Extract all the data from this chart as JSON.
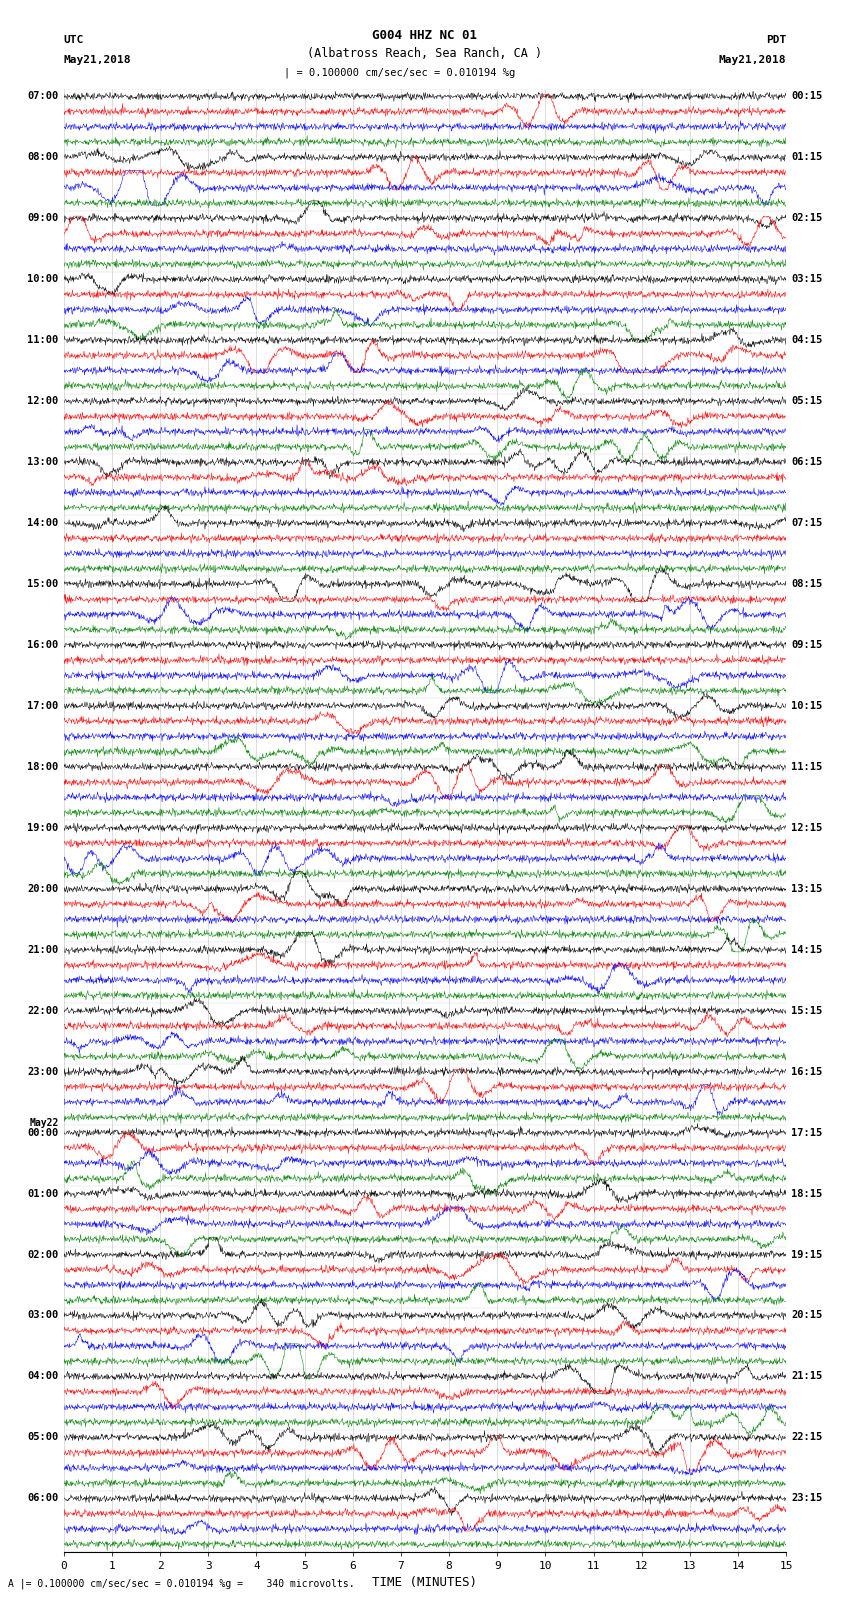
{
  "title_line1": "G004 HHZ NC 01",
  "title_line2": "(Albatross Reach, Sea Ranch, CA )",
  "scale_label": "= 0.100000 cm/sec/sec = 0.010194 %g",
  "footer_label": "A |= 0.100000 cm/sec/sec = 0.010194 %g =    340 microvolts.",
  "xlabel": "TIME (MINUTES)",
  "left_timezone": "UTC",
  "left_date": "May21,2018",
  "right_timezone": "PDT",
  "right_date": "May21,2018",
  "utc_times": [
    "07:00",
    "",
    "",
    "",
    "08:00",
    "",
    "",
    "",
    "09:00",
    "",
    "",
    "",
    "10:00",
    "",
    "",
    "",
    "11:00",
    "",
    "",
    "",
    "12:00",
    "",
    "",
    "",
    "13:00",
    "",
    "",
    "",
    "14:00",
    "",
    "",
    "",
    "15:00",
    "",
    "",
    "",
    "16:00",
    "",
    "",
    "",
    "17:00",
    "",
    "",
    "",
    "18:00",
    "",
    "",
    "",
    "19:00",
    "",
    "",
    "",
    "20:00",
    "",
    "",
    "",
    "21:00",
    "",
    "",
    "",
    "22:00",
    "",
    "",
    "",
    "23:00",
    "",
    "",
    "",
    "May22\n00:00",
    "",
    "",
    "",
    "01:00",
    "",
    "",
    "",
    "02:00",
    "",
    "",
    "",
    "03:00",
    "",
    "",
    "",
    "04:00",
    "",
    "",
    "",
    "05:00",
    "",
    "",
    "",
    "06:00",
    "",
    "",
    ""
  ],
  "pdt_times": [
    "00:15",
    "",
    "",
    "",
    "01:15",
    "",
    "",
    "",
    "02:15",
    "",
    "",
    "",
    "03:15",
    "",
    "",
    "",
    "04:15",
    "",
    "",
    "",
    "05:15",
    "",
    "",
    "",
    "06:15",
    "",
    "",
    "",
    "07:15",
    "",
    "",
    "",
    "08:15",
    "",
    "",
    "",
    "09:15",
    "",
    "",
    "",
    "10:15",
    "",
    "",
    "",
    "11:15",
    "",
    "",
    "",
    "12:15",
    "",
    "",
    "",
    "13:15",
    "",
    "",
    "",
    "14:15",
    "",
    "",
    "",
    "15:15",
    "",
    "",
    "",
    "16:15",
    "",
    "",
    "",
    "17:15",
    "",
    "",
    "",
    "18:15",
    "",
    "",
    "",
    "19:15",
    "",
    "",
    "",
    "20:15",
    "",
    "",
    "",
    "21:15",
    "",
    "",
    "",
    "22:15",
    "",
    "",
    "",
    "23:15",
    "",
    "",
    ""
  ],
  "trace_colors": [
    "black",
    "red",
    "blue",
    "green"
  ],
  "n_rows": 96,
  "x_ticks": [
    0,
    1,
    2,
    3,
    4,
    5,
    6,
    7,
    8,
    9,
    10,
    11,
    12,
    13,
    14,
    15
  ],
  "background_color": "white",
  "grid_color": "#aaaaaa"
}
